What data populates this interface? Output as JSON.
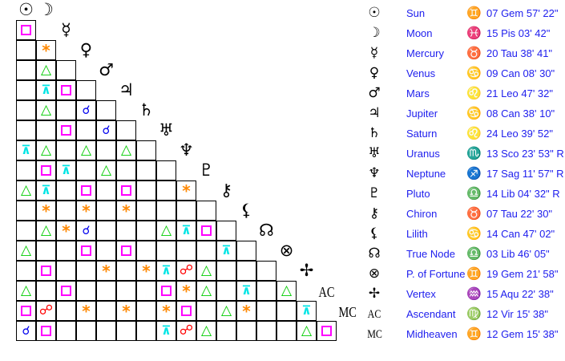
{
  "bodies": [
    {
      "glyph": "☉",
      "name": "Sun",
      "sign_glyph": "♊",
      "position": "07 Gem 57' 22\""
    },
    {
      "glyph": "☽",
      "name": "Moon",
      "sign_glyph": "♓",
      "position": "15 Pis 03' 42\""
    },
    {
      "glyph": "☿",
      "name": "Mercury",
      "sign_glyph": "♉",
      "position": "20 Tau 38' 41\""
    },
    {
      "glyph": "♀",
      "name": "Venus",
      "sign_glyph": "♋",
      "position": "09 Can 08' 30\""
    },
    {
      "glyph": "♂",
      "name": "Mars",
      "sign_glyph": "♌",
      "position": "21 Leo 47' 32\""
    },
    {
      "glyph": "♃",
      "name": "Jupiter",
      "sign_glyph": "♋",
      "position": "08 Can 38' 10\""
    },
    {
      "glyph": "♄",
      "name": "Saturn",
      "sign_glyph": "♌",
      "position": "24 Leo 39' 52\""
    },
    {
      "glyph": "♅",
      "name": "Uranus",
      "sign_glyph": "♏",
      "position": "13 Sco 23' 53\" R"
    },
    {
      "glyph": "♆",
      "name": "Neptune",
      "sign_glyph": "♐",
      "position": "17 Sag 11' 57\" R"
    },
    {
      "glyph": "♇",
      "name": "Pluto",
      "sign_glyph": "♎",
      "position": "14 Lib 04' 32\" R"
    },
    {
      "glyph": "⚷",
      "name": "Chiron",
      "sign_glyph": "♉",
      "position": "07 Tau 22' 30\""
    },
    {
      "glyph": "⚸",
      "name": "Lilith",
      "sign_glyph": "♋",
      "position": "14 Can 47' 02\""
    },
    {
      "glyph": "☊",
      "name": "True Node",
      "sign_glyph": "♎",
      "position": "03 Lib 46' 05\""
    },
    {
      "glyph": "⊗",
      "name": "P. of Fortune",
      "sign_glyph": "♊",
      "position": "19 Gem 21' 58\""
    },
    {
      "glyph": "✢",
      "name": "Vertex",
      "sign_glyph": "♒",
      "position": "15 Aqu 22' 38\""
    },
    {
      "glyph": "AC",
      "name": "Ascendant",
      "sign_glyph": "♍",
      "position": "12 Vir 15' 38\""
    },
    {
      "glyph": "MC",
      "name": "Midheaven",
      "sign_glyph": "♊",
      "position": "12 Gem 15' 38\""
    }
  ],
  "aspect_legend": {
    "C": {
      "name": "conjunction",
      "glyph": "☌",
      "color": "#0000ee"
    },
    "S": {
      "name": "sextile",
      "glyph": "*",
      "color": "#ff8800"
    },
    "Q": {
      "name": "square",
      "glyph": "",
      "color": "#ff00ff"
    },
    "T": {
      "name": "trine",
      "glyph": "△",
      "color": "#00cc00"
    },
    "X": {
      "name": "quincunx",
      "glyph": "⊼",
      "color": "#00e5e5"
    },
    "O": {
      "name": "opposition",
      "glyph": "☍",
      "color": "#ff0000"
    }
  },
  "aspect_grid": [
    "Q",
    ".S",
    ".T.",
    ".XQ.",
    ".T.C.",
    "..Q.C.",
    "XT.T.T.",
    ".QX.T...",
    "TX.Q.Q..S",
    ".S.S.S....",
    ".TSC...TXQ.",
    "T..Q.Q....X.",
    ".Q..S.SXOT...",
    "T.Q....QST.X.T",
    "QO.S.S.SQ.TS..X",
    "CQ.....XOT....TQ"
  ]
}
